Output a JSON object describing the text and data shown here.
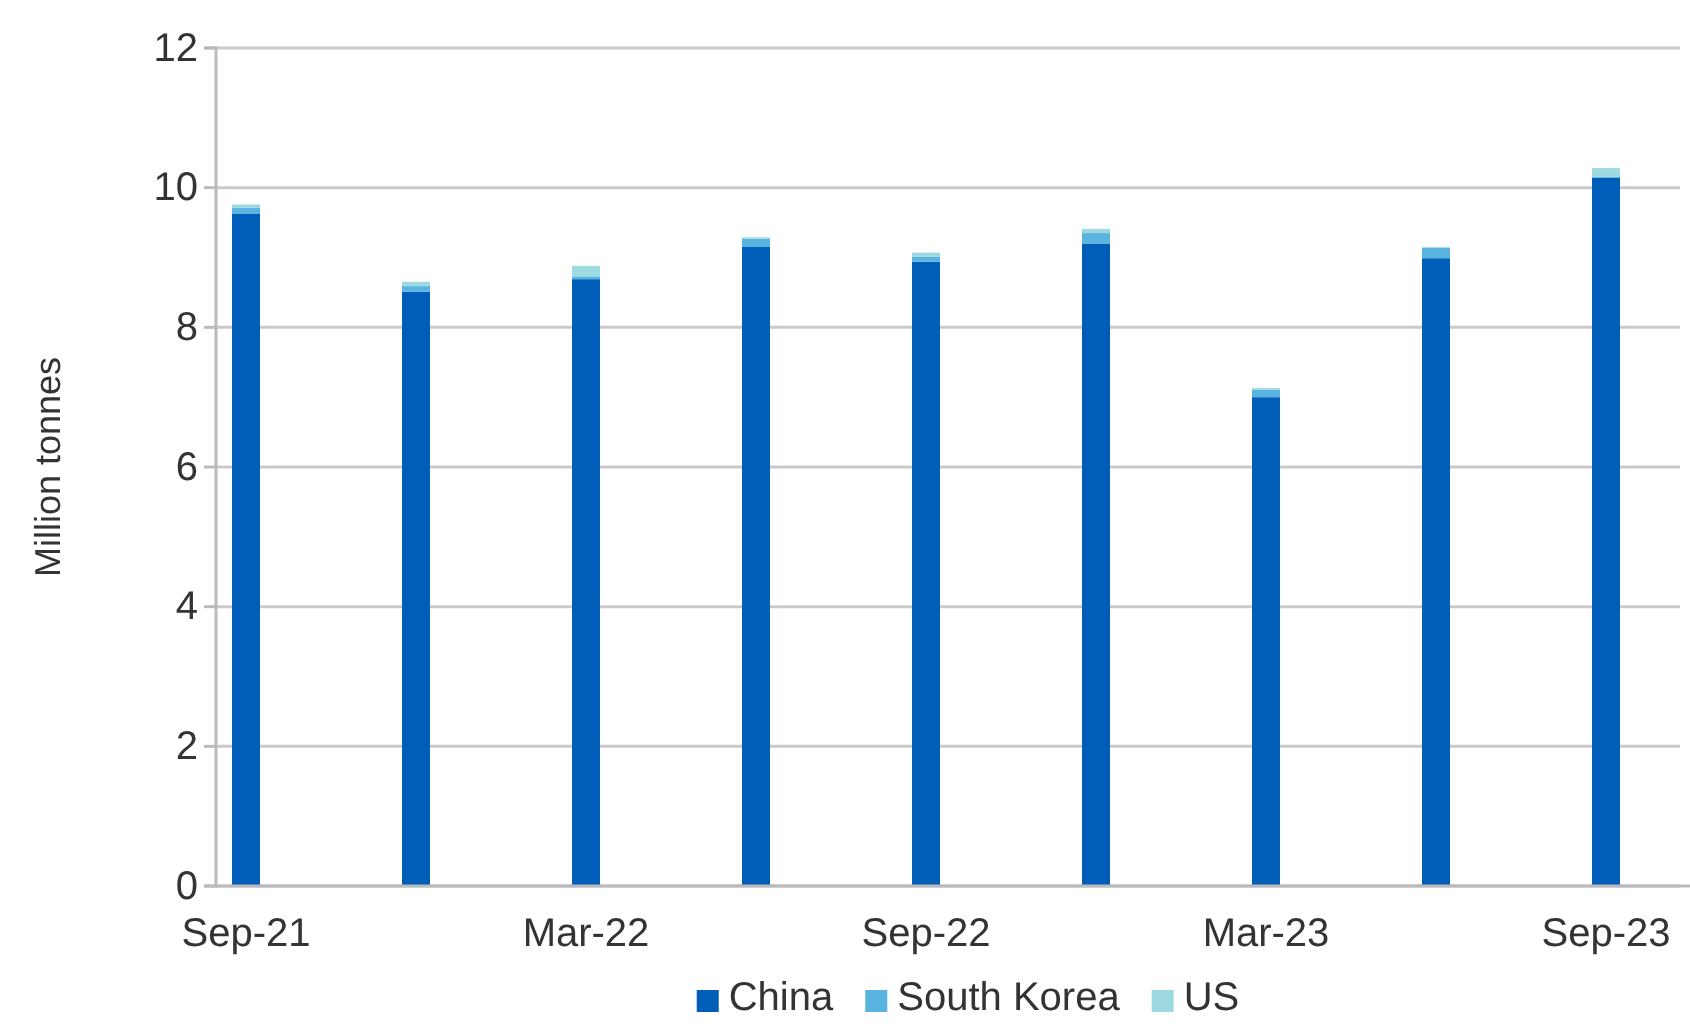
{
  "chart_data": {
    "type": "bar",
    "stacked": true,
    "ylabel": "Million tonnes",
    "categories": [
      "Sep-21",
      null,
      "Mar-22",
      null,
      "Sep-22",
      null,
      "Mar-23",
      null,
      "Sep-23"
    ],
    "series": [
      {
        "name": "China",
        "color": "#005eb8",
        "values": [
          9.63,
          8.51,
          8.69,
          9.15,
          8.94,
          9.2,
          7.0,
          8.99,
          10.14
        ]
      },
      {
        "name": "South Korea",
        "color": "#5ab4e0",
        "values": [
          0.08,
          0.08,
          0.04,
          0.12,
          0.07,
          0.15,
          0.11,
          0.15,
          0.02
        ]
      },
      {
        "name": "US",
        "color": "#9ed8e0",
        "values": [
          0.05,
          0.06,
          0.15,
          0.02,
          0.06,
          0.06,
          0.02,
          0.01,
          0.12
        ]
      }
    ],
    "ylim": [
      0,
      12
    ],
    "yticks": [
      0,
      2,
      4,
      6,
      8,
      10,
      12
    ],
    "grid": "y",
    "legend": "bottom"
  }
}
